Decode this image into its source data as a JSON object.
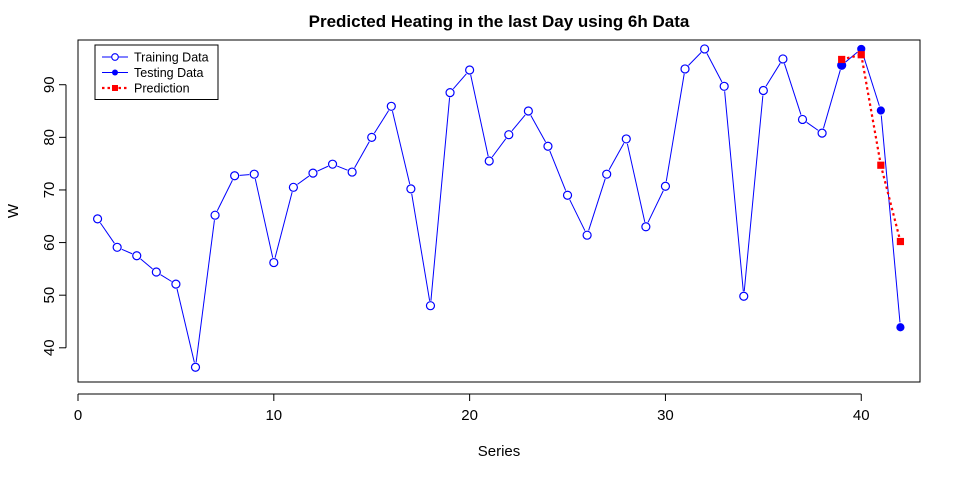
{
  "chart_data": {
    "type": "line",
    "title": "Predicted Heating in the last Day using 6h Data",
    "xlabel": "Series",
    "ylabel": "W",
    "xlim": [
      0,
      43
    ],
    "ylim": [
      33.5,
      98.5
    ],
    "x_ticks": [
      0,
      10,
      20,
      30,
      40
    ],
    "y_ticks": [
      40,
      50,
      60,
      70,
      80,
      90
    ],
    "grid": false,
    "legend_position": "top-left",
    "series": [
      {
        "name": "Training Data",
        "color": "#0000ff",
        "marker": "open-circle",
        "x": [
          1,
          2,
          3,
          4,
          5,
          6,
          7,
          8,
          9,
          10,
          11,
          12,
          13,
          14,
          15,
          16,
          17,
          18,
          19,
          20,
          21,
          22,
          23,
          24,
          25,
          26,
          27,
          28,
          29,
          30,
          31,
          32,
          33,
          34,
          35,
          36,
          37,
          38,
          39
        ],
        "y": [
          64.5,
          59.1,
          57.5,
          54.4,
          52.1,
          36.3,
          65.2,
          72.7,
          73.0,
          56.2,
          70.5,
          73.2,
          74.9,
          73.4,
          80.0,
          85.9,
          70.2,
          48.0,
          88.5,
          92.8,
          75.5,
          80.5,
          85.0,
          78.3,
          69.0,
          61.4,
          73.0,
          79.7,
          63.0,
          70.7,
          93.0,
          96.8,
          89.7,
          49.8,
          88.9,
          94.9,
          83.4,
          80.8,
          93.7
        ]
      },
      {
        "name": "Testing Data",
        "color": "#0000ff",
        "marker": "filled-circle",
        "x": [
          39,
          40,
          41,
          42
        ],
        "y": [
          93.7,
          96.8,
          85.1,
          43.9
        ]
      },
      {
        "name": "Prediction",
        "color": "#ff0000",
        "marker": "filled-square",
        "line_style": "dotted",
        "x": [
          39,
          40,
          41,
          42
        ],
        "y": [
          94.8,
          95.7,
          74.7,
          60.2
        ]
      }
    ]
  }
}
